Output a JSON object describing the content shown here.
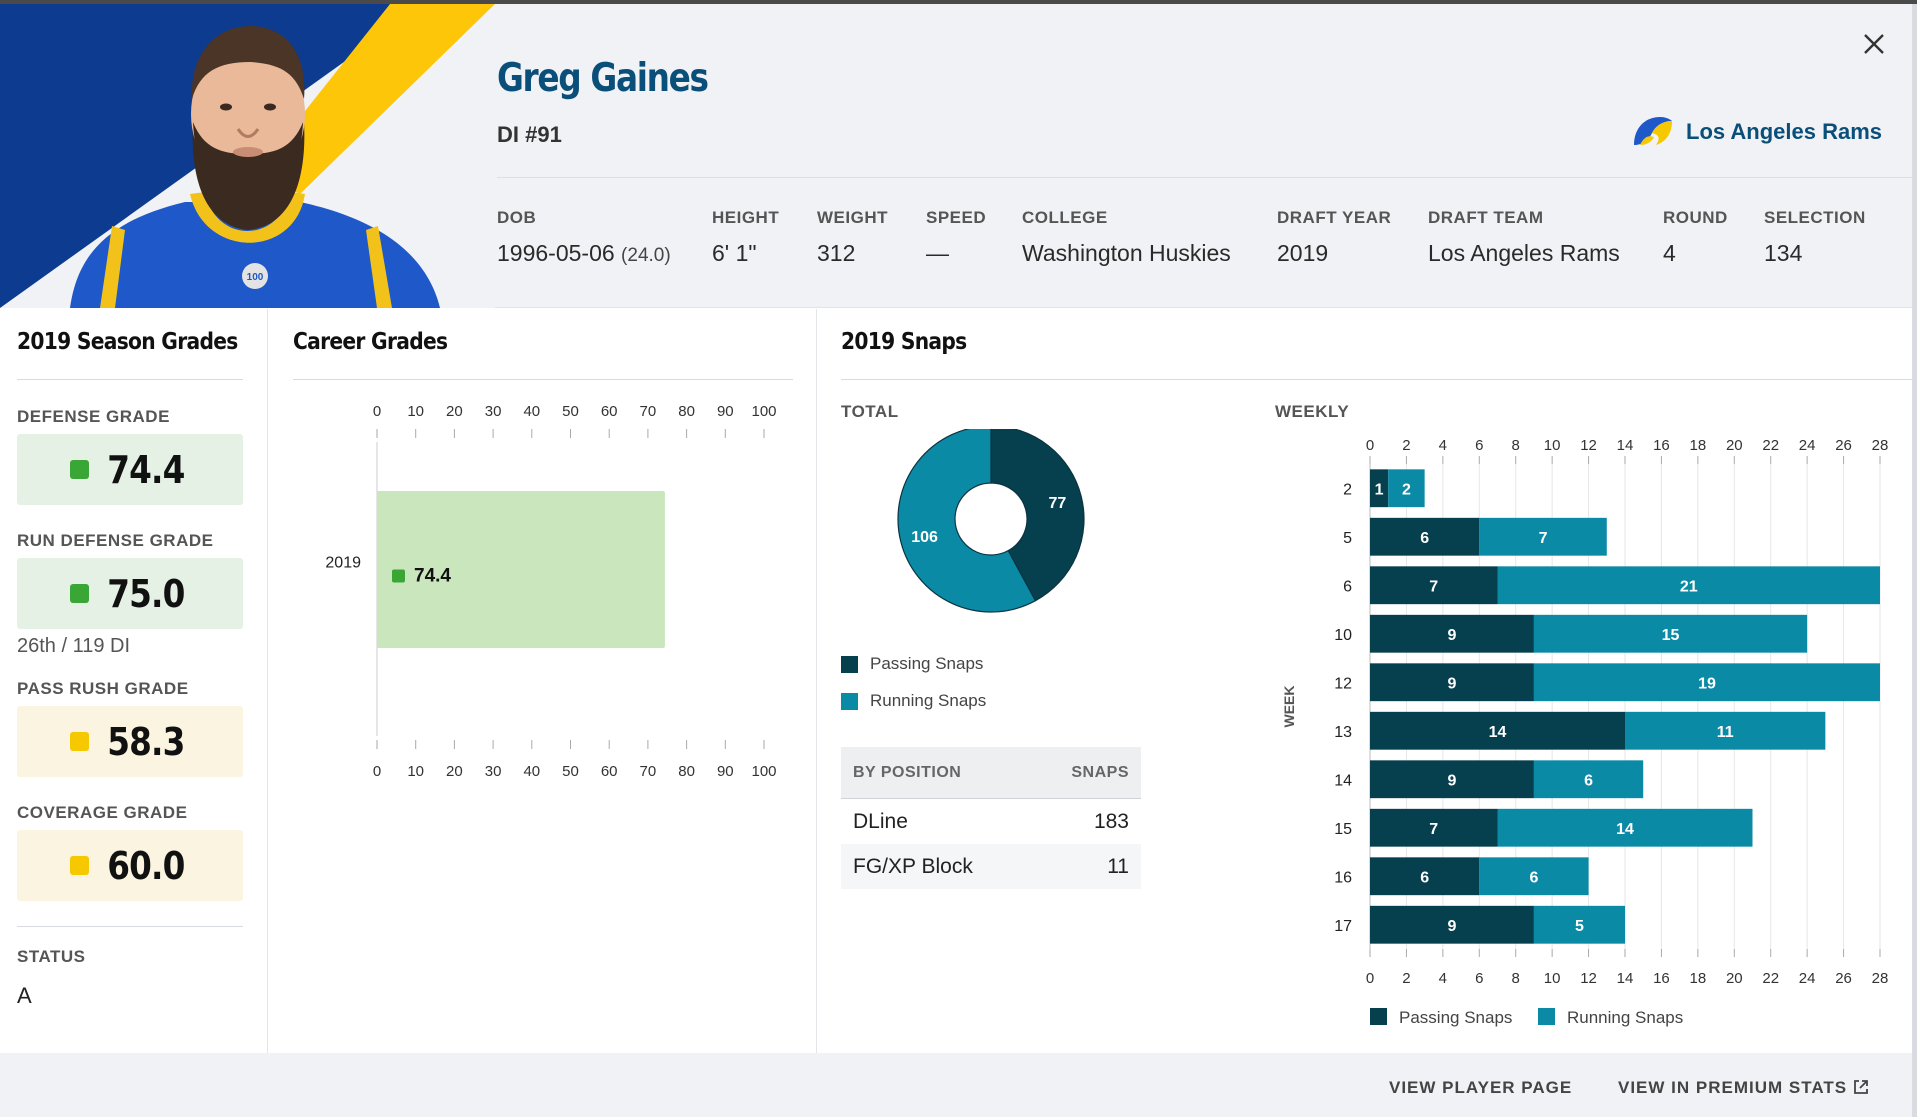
{
  "player": {
    "name": "Greg Gaines",
    "position_number": "DI #91",
    "team": "Los Angeles Rams"
  },
  "bio": [
    {
      "label": "DOB",
      "value": "1996-05-06",
      "extra": "(24.0)"
    },
    {
      "label": "HEIGHT",
      "value": "6' 1\""
    },
    {
      "label": "WEIGHT",
      "value": "312"
    },
    {
      "label": "SPEED",
      "value": "—"
    },
    {
      "label": "COLLEGE",
      "value": "Washington Huskies"
    },
    {
      "label": "DRAFT YEAR",
      "value": "2019"
    },
    {
      "label": "DRAFT TEAM",
      "value": "Los Angeles Rams"
    },
    {
      "label": "ROUND",
      "value": "4"
    },
    {
      "label": "SELECTION",
      "value": "134"
    }
  ],
  "season_grades": {
    "title": "2019 Season Grades",
    "grades": [
      {
        "label": "DEFENSE GRADE",
        "value": "74.4",
        "level": "green"
      },
      {
        "label": "RUN DEFENSE GRADE",
        "value": "75.0",
        "level": "green",
        "rank": "26th / 119 DI"
      },
      {
        "label": "PASS RUSH GRADE",
        "value": "58.3",
        "level": "yellow"
      },
      {
        "label": "COVERAGE GRADE",
        "value": "60.0",
        "level": "yellow"
      }
    ],
    "status_label": "STATUS",
    "status_value": "A"
  },
  "career": {
    "title": "Career Grades"
  },
  "snaps": {
    "title": "2019 Snaps",
    "total_label": "TOTAL",
    "weekly_label": "WEEKLY",
    "week_axis_label": "WEEK",
    "legend": {
      "passing": "Passing Snaps",
      "running": "Running Snaps"
    },
    "by_position": {
      "header_position": "BY POSITION",
      "header_snaps": "SNAPS",
      "rows": [
        {
          "position": "DLine",
          "snaps": "183"
        },
        {
          "position": "FG/XP Block",
          "snaps": "11"
        }
      ]
    }
  },
  "footer": {
    "player_page": "VIEW PLAYER PAGE",
    "premium": "VIEW IN PREMIUM STATS"
  },
  "colors": {
    "brand_blue": "#0a4f7a",
    "grade_green": "#3aa635",
    "grade_green_bg": "#e6f1e5",
    "grade_yellow": "#f6c800",
    "grade_yellow_bg": "#fbf4e0",
    "career_bar": "#c9e6bd",
    "passing": "#063f4e",
    "running": "#0b8aa6"
  },
  "chart_data": [
    {
      "type": "bar",
      "orientation": "horizontal",
      "categories": [
        "2019"
      ],
      "values": [
        74.4
      ],
      "xlim": [
        0,
        100
      ],
      "xticks": [
        0,
        10,
        20,
        30,
        40,
        50,
        60,
        70,
        80,
        90,
        100
      ]
    },
    {
      "type": "pie",
      "donut": true,
      "labels": [
        "Passing Snaps",
        "Running Snaps"
      ],
      "values": [
        77,
        106
      ]
    },
    {
      "type": "bar",
      "orientation": "horizontal",
      "stacked": true,
      "categories": [
        "2",
        "5",
        "6",
        "10",
        "12",
        "13",
        "14",
        "15",
        "16",
        "17"
      ],
      "series": [
        {
          "name": "Passing Snaps",
          "values": [
            1,
            6,
            7,
            9,
            9,
            14,
            9,
            7,
            6,
            9
          ]
        },
        {
          "name": "Running Snaps",
          "values": [
            2,
            7,
            21,
            15,
            19,
            11,
            6,
            14,
            6,
            5
          ]
        }
      ],
      "ylabel": "WEEK",
      "xlim": [
        0,
        28
      ],
      "xticks": [
        0,
        2,
        4,
        6,
        8,
        10,
        12,
        14,
        16,
        18,
        20,
        22,
        24,
        26,
        28
      ],
      "grid": true,
      "legend": "bottom-left"
    }
  ]
}
